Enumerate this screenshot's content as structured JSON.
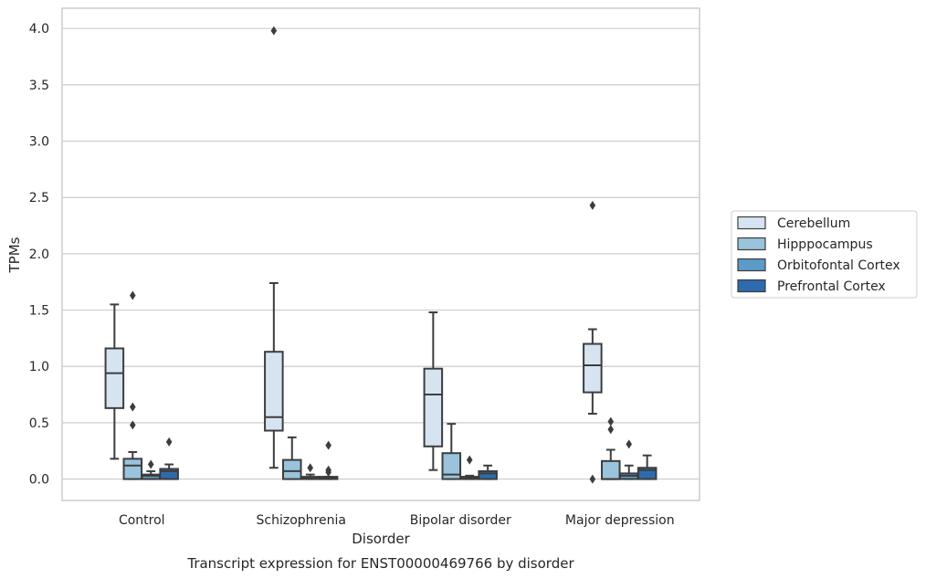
{
  "chart_data": {
    "type": "box",
    "title": "Transcript expression for ENST00000469766 by disorder",
    "xlabel": "Disorder",
    "ylabel": "TPMs",
    "ylim": [
      -0.19,
      4.18
    ],
    "yticks": [
      "0.0",
      "0.5",
      "1.0",
      "1.5",
      "2.0",
      "2.5",
      "3.0",
      "3.5",
      "4.0"
    ],
    "grid": true,
    "legend_position": "right",
    "categories": [
      "Control",
      "Schizophrenia",
      "Bipolar disorder",
      "Major depression"
    ],
    "series": [
      {
        "name": "Cerebellum",
        "color": "#d6e4f2",
        "boxes": [
          {
            "whislo": 0.18,
            "q1": 0.63,
            "med": 0.94,
            "q3": 1.16,
            "whishi": 1.55,
            "fliers": []
          },
          {
            "whislo": 0.1,
            "q1": 0.43,
            "med": 0.55,
            "q3": 1.13,
            "whishi": 1.74,
            "fliers": [
              3.98
            ]
          },
          {
            "whislo": 0.08,
            "q1": 0.29,
            "med": 0.75,
            "q3": 0.98,
            "whishi": 1.48,
            "fliers": []
          },
          {
            "whislo": 0.58,
            "q1": 0.77,
            "med": 1.01,
            "q3": 1.2,
            "whishi": 1.33,
            "fliers": [
              2.43,
              0.0
            ]
          }
        ]
      },
      {
        "name": "Hipppocampus",
        "color": "#9ac3dc",
        "boxes": [
          {
            "whislo": 0.0,
            "q1": 0.0,
            "med": 0.12,
            "q3": 0.18,
            "whishi": 0.24,
            "fliers": [
              1.63,
              0.64,
              0.48
            ]
          },
          {
            "whislo": 0.0,
            "q1": 0.0,
            "med": 0.07,
            "q3": 0.17,
            "whishi": 0.37,
            "fliers": []
          },
          {
            "whislo": 0.0,
            "q1": 0.0,
            "med": 0.04,
            "q3": 0.23,
            "whishi": 0.49,
            "fliers": []
          },
          {
            "whislo": 0.0,
            "q1": 0.0,
            "med": 0.0,
            "q3": 0.16,
            "whishi": 0.26,
            "fliers": [
              0.51,
              0.44
            ]
          }
        ]
      },
      {
        "name": "Orbitofontal Cortex",
        "color": "#5c9ac7",
        "boxes": [
          {
            "whislo": 0.0,
            "q1": 0.0,
            "med": 0.03,
            "q3": 0.04,
            "whishi": 0.07,
            "fliers": [
              0.13
            ]
          },
          {
            "whislo": 0.0,
            "q1": 0.0,
            "med": 0.01,
            "q3": 0.02,
            "whishi": 0.04,
            "fliers": [
              0.1
            ]
          },
          {
            "whislo": 0.0,
            "q1": 0.0,
            "med": 0.01,
            "q3": 0.02,
            "whishi": 0.03,
            "fliers": [
              0.17
            ]
          },
          {
            "whislo": 0.0,
            "q1": 0.0,
            "med": 0.03,
            "q3": 0.05,
            "whishi": 0.12,
            "fliers": [
              0.31
            ]
          }
        ]
      },
      {
        "name": "Prefrontal Cortex",
        "color": "#2c6bad",
        "boxes": [
          {
            "whislo": 0.0,
            "q1": 0.0,
            "med": 0.07,
            "q3": 0.09,
            "whishi": 0.13,
            "fliers": [
              0.33
            ]
          },
          {
            "whislo": 0.0,
            "q1": 0.0,
            "med": 0.01,
            "q3": 0.02,
            "whishi": 0.02,
            "fliers": [
              0.3,
              0.08,
              0.06
            ]
          },
          {
            "whislo": 0.0,
            "q1": 0.0,
            "med": 0.05,
            "q3": 0.07,
            "whishi": 0.12,
            "fliers": []
          },
          {
            "whislo": 0.0,
            "q1": 0.0,
            "med": 0.08,
            "q3": 0.1,
            "whishi": 0.21,
            "fliers": []
          }
        ]
      }
    ]
  }
}
